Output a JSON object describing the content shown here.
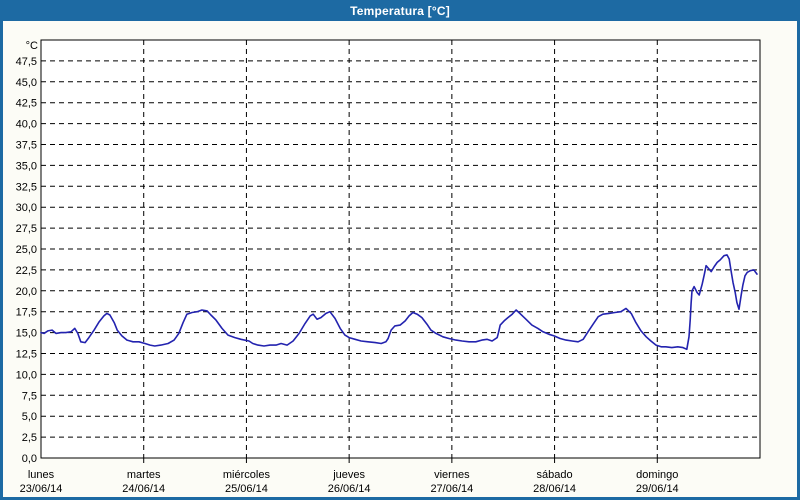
{
  "window": {
    "title": "Temperatura [°C]"
  },
  "colors": {
    "titlebar_bg": "#1D6AA3",
    "frame": "#1D6AA3",
    "page_bg": "#FCFCF6",
    "plot_bg": "#FFFFFF",
    "grid": "#000000",
    "axis": "#000000",
    "series_line": "#2323AF",
    "title_text": "#FFFFFF",
    "label_text": "#000000"
  },
  "chart_data": {
    "type": "line",
    "title": "Temperatura [°C]",
    "legend": "none",
    "grid": {
      "style": "dashed",
      "horizontal_step_deg": 2.5,
      "vertical_step_hours": 24
    },
    "y_axis": {
      "unit_label": "°C",
      "min": 0,
      "max": 50,
      "tick_step": 2.5,
      "decimal_separator": ",",
      "tick_labels": [
        "47,5",
        "45,0",
        "42,5",
        "40,0",
        "37,5",
        "35,0",
        "32,5",
        "30,0",
        "27,5",
        "25,0",
        "22,5",
        "20,0",
        "17,5",
        "15,0",
        "12,5",
        "10,0",
        "7,5",
        "5,0",
        "2,5",
        "0,0"
      ]
    },
    "x_axis": {
      "range_hours": [
        0,
        168
      ],
      "day_labels": [
        {
          "name": "lunes",
          "date": "23/06/14"
        },
        {
          "name": "martes",
          "date": "24/06/14"
        },
        {
          "name": "miércoles",
          "date": "25/06/14"
        },
        {
          "name": "jueves",
          "date": "26/06/14"
        },
        {
          "name": "viernes",
          "date": "27/06/14"
        },
        {
          "name": "sábado",
          "date": "28/06/14"
        },
        {
          "name": "domingo",
          "date": "29/06/14"
        }
      ]
    },
    "series": [
      {
        "name": "Temperatura",
        "unit": "°C",
        "points_hours_temp": [
          [
            0,
            15.0
          ],
          [
            0.7,
            14.9
          ],
          [
            1.6,
            15.2
          ],
          [
            2.6,
            15.3
          ],
          [
            3.5,
            14.9
          ],
          [
            4.7,
            15.0
          ],
          [
            5.8,
            15.0
          ],
          [
            7.0,
            15.1
          ],
          [
            7.9,
            15.5
          ],
          [
            8.6,
            14.9
          ],
          [
            9.3,
            13.9
          ],
          [
            10.3,
            13.8
          ],
          [
            11.2,
            14.4
          ],
          [
            12.4,
            15.3
          ],
          [
            13.6,
            16.3
          ],
          [
            14.7,
            17.0
          ],
          [
            15.4,
            17.3
          ],
          [
            16.1,
            17.1
          ],
          [
            17.1,
            16.2
          ],
          [
            17.8,
            15.3
          ],
          [
            18.9,
            14.6
          ],
          [
            20.1,
            14.1
          ],
          [
            21.5,
            13.9
          ],
          [
            22.9,
            13.9
          ],
          [
            24.3,
            13.7
          ],
          [
            25.5,
            13.5
          ],
          [
            26.6,
            13.4
          ],
          [
            28.0,
            13.5
          ],
          [
            29.7,
            13.7
          ],
          [
            31.1,
            14.1
          ],
          [
            32.2,
            14.9
          ],
          [
            33.2,
            16.2
          ],
          [
            34.1,
            17.2
          ],
          [
            35.3,
            17.4
          ],
          [
            36.5,
            17.5
          ],
          [
            37.6,
            17.7
          ],
          [
            38.8,
            17.6
          ],
          [
            39.7,
            17.1
          ],
          [
            40.9,
            16.5
          ],
          [
            42.3,
            15.5
          ],
          [
            43.7,
            14.7
          ],
          [
            45.3,
            14.4
          ],
          [
            46.7,
            14.2
          ],
          [
            48.6,
            14.0
          ],
          [
            49.5,
            13.7
          ],
          [
            50.7,
            13.5
          ],
          [
            52.1,
            13.4
          ],
          [
            53.5,
            13.5
          ],
          [
            54.9,
            13.5
          ],
          [
            56.1,
            13.7
          ],
          [
            57.5,
            13.5
          ],
          [
            58.9,
            14.0
          ],
          [
            60.3,
            14.9
          ],
          [
            61.7,
            16.1
          ],
          [
            62.9,
            17.0
          ],
          [
            63.6,
            17.2
          ],
          [
            64.5,
            16.6
          ],
          [
            65.4,
            16.8
          ],
          [
            66.6,
            17.3
          ],
          [
            67.5,
            17.5
          ],
          [
            68.7,
            16.7
          ],
          [
            69.9,
            15.5
          ],
          [
            71.0,
            14.7
          ],
          [
            72.0,
            14.4
          ],
          [
            73.4,
            14.2
          ],
          [
            74.8,
            14.0
          ],
          [
            76.4,
            13.9
          ],
          [
            78.1,
            13.8
          ],
          [
            79.5,
            13.7
          ],
          [
            80.6,
            13.9
          ],
          [
            81.1,
            14.3
          ],
          [
            81.8,
            15.3
          ],
          [
            82.7,
            15.8
          ],
          [
            83.9,
            15.9
          ],
          [
            85.1,
            16.4
          ],
          [
            86.0,
            17.0
          ],
          [
            86.9,
            17.4
          ],
          [
            87.9,
            17.2
          ],
          [
            89.0,
            16.8
          ],
          [
            90.2,
            16.0
          ],
          [
            91.1,
            15.3
          ],
          [
            92.3,
            14.9
          ],
          [
            93.9,
            14.5
          ],
          [
            95.3,
            14.3
          ],
          [
            97.0,
            14.1
          ],
          [
            98.4,
            14.0
          ],
          [
            100.0,
            13.9
          ],
          [
            101.6,
            13.9
          ],
          [
            103.0,
            14.1
          ],
          [
            104.2,
            14.2
          ],
          [
            105.4,
            14.0
          ],
          [
            106.6,
            14.4
          ],
          [
            106.9,
            15.0
          ],
          [
            107.3,
            15.9
          ],
          [
            108.2,
            16.4
          ],
          [
            109.1,
            16.8
          ],
          [
            110.1,
            17.2
          ],
          [
            111.0,
            17.7
          ],
          [
            111.9,
            17.3
          ],
          [
            113.3,
            16.6
          ],
          [
            114.7,
            15.9
          ],
          [
            116.1,
            15.5
          ],
          [
            117.3,
            15.1
          ],
          [
            118.7,
            14.8
          ],
          [
            119.9,
            14.6
          ],
          [
            121.3,
            14.3
          ],
          [
            122.7,
            14.1
          ],
          [
            124.1,
            14.0
          ],
          [
            125.5,
            13.9
          ],
          [
            126.7,
            14.2
          ],
          [
            127.8,
            15.1
          ],
          [
            129.0,
            16.0
          ],
          [
            130.2,
            16.9
          ],
          [
            131.3,
            17.2
          ],
          [
            132.7,
            17.3
          ],
          [
            134.1,
            17.4
          ],
          [
            135.5,
            17.5
          ],
          [
            136.7,
            17.9
          ],
          [
            137.9,
            17.3
          ],
          [
            139.0,
            16.2
          ],
          [
            140.2,
            15.2
          ],
          [
            141.4,
            14.5
          ],
          [
            142.5,
            14.0
          ],
          [
            143.7,
            13.5
          ],
          [
            144.9,
            13.3
          ],
          [
            146.0,
            13.3
          ],
          [
            147.4,
            13.2
          ],
          [
            148.8,
            13.3
          ],
          [
            150.0,
            13.2
          ],
          [
            150.9,
            13.0
          ],
          [
            151.4,
            14.5
          ],
          [
            151.7,
            16.5
          ],
          [
            151.9,
            18.5
          ],
          [
            152.1,
            20.0
          ],
          [
            152.6,
            20.5
          ],
          [
            153.3,
            19.8
          ],
          [
            153.8,
            19.5
          ],
          [
            154.5,
            20.8
          ],
          [
            155.0,
            22.0
          ],
          [
            155.4,
            23.0
          ],
          [
            156.1,
            22.6
          ],
          [
            156.6,
            22.3
          ],
          [
            157.3,
            22.9
          ],
          [
            158.0,
            23.4
          ],
          [
            158.7,
            23.7
          ],
          [
            159.6,
            24.2
          ],
          [
            160.3,
            24.3
          ],
          [
            160.8,
            23.8
          ],
          [
            161.2,
            22.5
          ],
          [
            161.7,
            21.0
          ],
          [
            162.2,
            19.8
          ],
          [
            162.6,
            18.6
          ],
          [
            163.1,
            17.8
          ],
          [
            163.6,
            19.5
          ],
          [
            164.0,
            20.7
          ],
          [
            164.5,
            21.8
          ],
          [
            165.0,
            22.2
          ],
          [
            165.7,
            22.4
          ],
          [
            166.6,
            22.5
          ],
          [
            167.0,
            22.2
          ],
          [
            167.3,
            22.0
          ]
        ]
      }
    ]
  }
}
